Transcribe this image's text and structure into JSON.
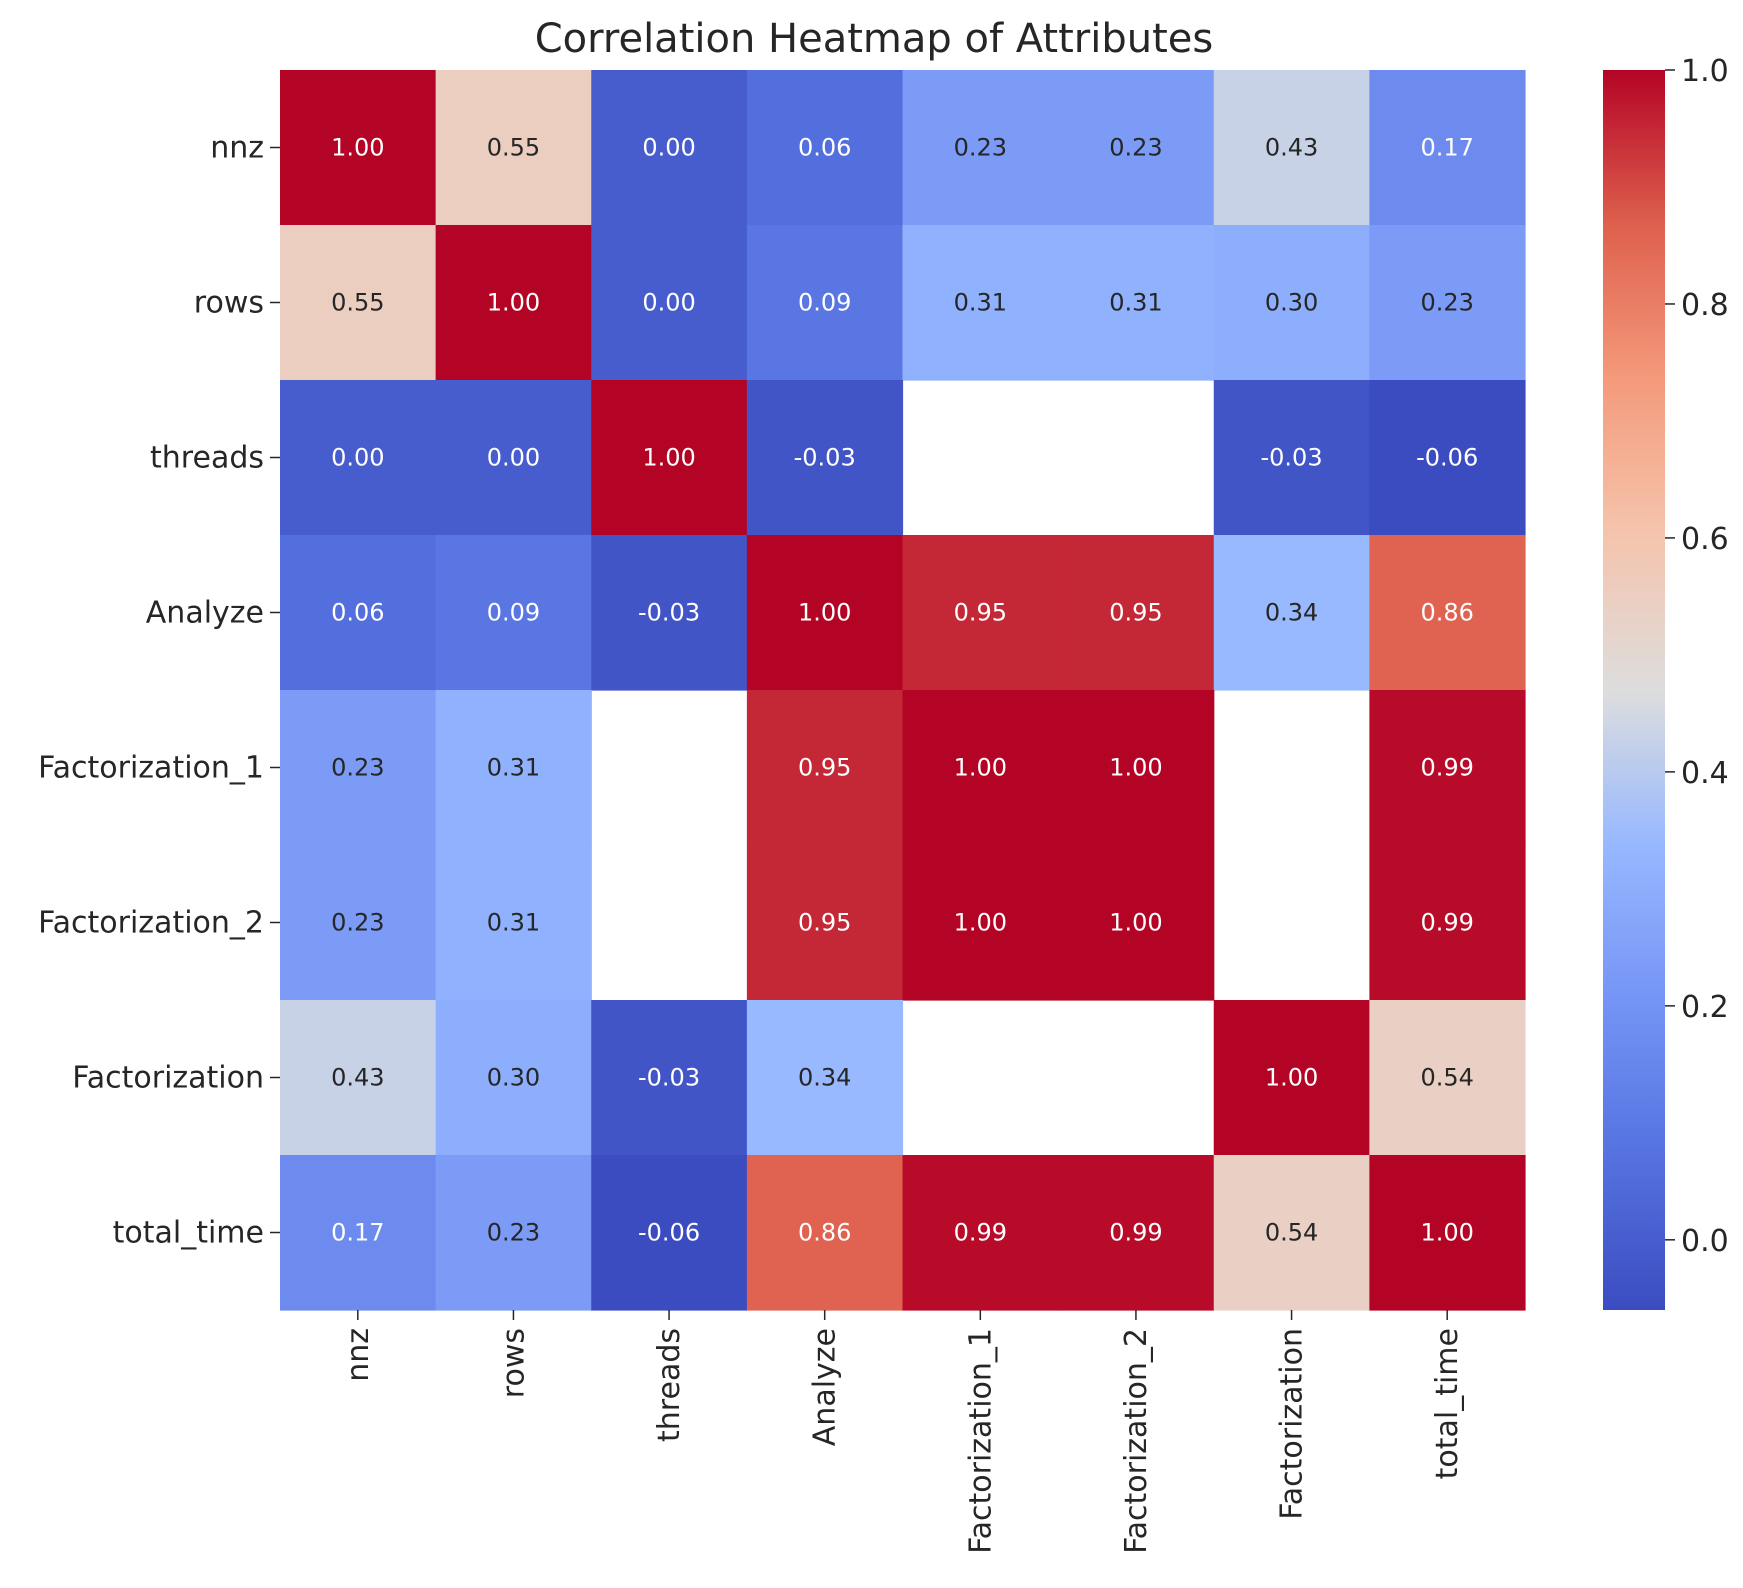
{
  "chart_data": {
    "type": "heatmap",
    "title": "Correlation Heatmap of Attributes",
    "xlabel": "",
    "ylabel": "",
    "row_labels": [
      "nnz",
      "rows",
      "threads",
      "Analyze",
      "Factorization_1",
      "Factorization_2",
      "Factorization",
      "total_time"
    ],
    "col_labels": [
      "nnz",
      "rows",
      "threads",
      "Analyze",
      "Factorization_1",
      "Factorization_2",
      "Factorization",
      "total_time"
    ],
    "values": [
      [
        1.0,
        0.55,
        0.0,
        0.06,
        0.23,
        0.23,
        0.43,
        0.17
      ],
      [
        0.55,
        1.0,
        0.0,
        0.09,
        0.31,
        0.31,
        0.3,
        0.23
      ],
      [
        0.0,
        0.0,
        1.0,
        -0.03,
        null,
        null,
        -0.03,
        -0.06
      ],
      [
        0.06,
        0.09,
        -0.03,
        1.0,
        0.95,
        0.95,
        0.34,
        0.86
      ],
      [
        0.23,
        0.31,
        null,
        0.95,
        1.0,
        1.0,
        null,
        0.99
      ],
      [
        0.23,
        0.31,
        null,
        0.95,
        1.0,
        1.0,
        null,
        0.99
      ],
      [
        0.43,
        0.3,
        -0.03,
        0.34,
        null,
        null,
        1.0,
        0.54
      ],
      [
        0.17,
        0.23,
        -0.06,
        0.86,
        0.99,
        0.99,
        0.54,
        1.0
      ]
    ],
    "annotation_format": "0.00",
    "colormap": "coolwarm",
    "color_range": [
      -0.06,
      1.0
    ],
    "colorbar_ticks": [
      "0.0",
      "0.2",
      "0.4",
      "0.6",
      "0.8",
      "1.0"
    ],
    "colorbar_position": "right",
    "grid": false
  }
}
